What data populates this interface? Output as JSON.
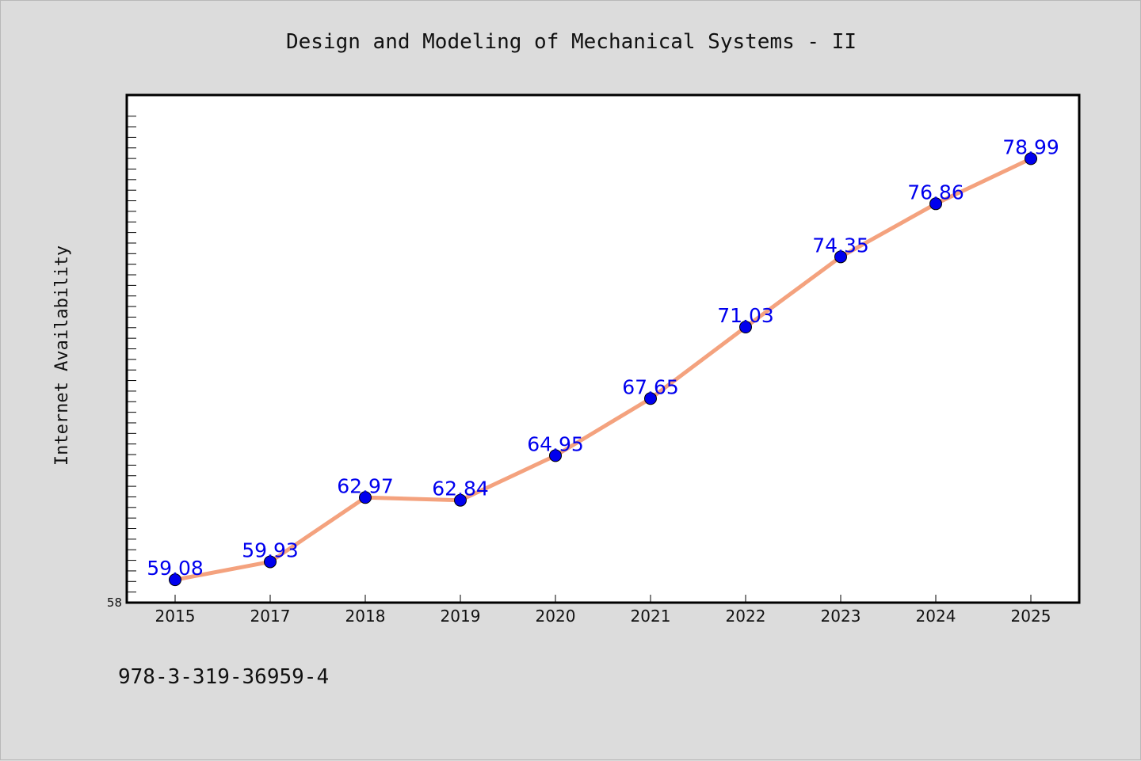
{
  "chart_data": {
    "type": "line",
    "title": "Design and Modeling of Mechanical Systems - II",
    "xlabel": "",
    "ylabel": "Internet Availability",
    "categories": [
      "2015",
      "2017",
      "2018",
      "2019",
      "2020",
      "2021",
      "2022",
      "2023",
      "2024",
      "2025"
    ],
    "series": [
      {
        "values": [
          59.08,
          59.93,
          62.97,
          62.84,
          64.95,
          67.65,
          71.03,
          74.35,
          76.86,
          78.99
        ]
      }
    ],
    "ylim": [
      58,
      82
    ],
    "y_ticks_labeled": [
      "58"
    ],
    "data_labels": [
      "59.08",
      "59.93",
      "62.97",
      "62.84",
      "64.95",
      "67.65",
      "71.03",
      "74.35",
      "76.86",
      "78.99"
    ],
    "grid": false,
    "legend": "none",
    "colors": {
      "line": "#f4a27e",
      "marker": "#0000ee",
      "data_label": "#0000ee",
      "plot_bg": "#ffffff",
      "page_bg": "#dcdcdc"
    }
  },
  "footer": {
    "isbn": "978-3-319-36959-4"
  }
}
